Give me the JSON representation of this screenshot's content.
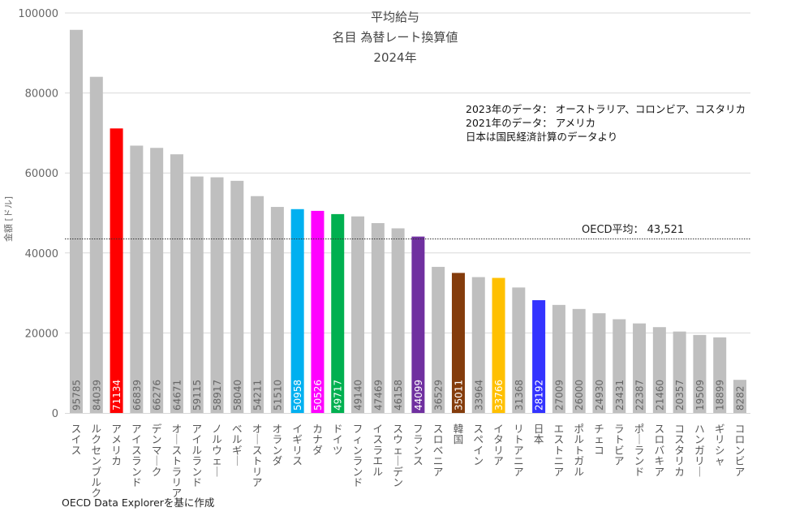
{
  "chart_data": {
    "type": "bar",
    "title": [
      "平均給与",
      "名目 為替レート換算値",
      "2024年"
    ],
    "xlabel": "",
    "ylabel": "金額 [ドル]",
    "ylim": [
      0,
      100000
    ],
    "yticks": [
      0,
      20000,
      40000,
      60000,
      80000,
      100000
    ],
    "ytick_labels": [
      "0",
      "20000",
      "40000",
      "60000",
      "80000",
      "100000"
    ],
    "grid": true,
    "categories": [
      "スイス",
      "ルクセンブルク",
      "アメリカ",
      "アイスランド",
      "デンマーク",
      "オーストラリア",
      "アイルランド",
      "ノルウェー",
      "ベルギー",
      "オーストリア",
      "オランダ",
      "イギリス",
      "カナダ",
      "ドイツ",
      "フィンランド",
      "イスラエル",
      "スウェーデン",
      "フランス",
      "スロベニア",
      "韓国",
      "スペイン",
      "イタリア",
      "リトアニア",
      "日本",
      "エストニア",
      "ポルトガル",
      "チェコ",
      "ラトビア",
      "ポーランド",
      "スロバキア",
      "コスタリカ",
      "ハンガリー",
      "ギリシャ",
      "コロンビア"
    ],
    "values": [
      95785,
      84039,
      71134,
      66839,
      66276,
      64671,
      59115,
      58917,
      58040,
      54211,
      51510,
      50958,
      50526,
      49717,
      49140,
      47469,
      46158,
      44099,
      36529,
      35011,
      33964,
      33766,
      31368,
      28192,
      27009,
      26000,
      24930,
      23431,
      22387,
      21460,
      20357,
      19509,
      18899,
      8282
    ],
    "value_labels": [
      "95785",
      "84039",
      "71134",
      "66839",
      "66276",
      "64671",
      "59115",
      "58917",
      "58040",
      "54211",
      "51510",
      "50958",
      "50526",
      "49717",
      "49140",
      "47469",
      "46158",
      "44099",
      "36529",
      "35011",
      "33964",
      "33766",
      "31368",
      "28192",
      "27009",
      "26000",
      "24930",
      "23431",
      "22387",
      "21460",
      "20357",
      "19509",
      "18899",
      "8282"
    ],
    "default_color": "#BFBFBF",
    "highlight_colors": {
      "アメリカ": "#FF0000",
      "イギリス": "#00B0F0",
      "カナダ": "#FF00FF",
      "ドイツ": "#00B050",
      "フランス": "#7030A0",
      "韓国": "#843C0C",
      "イタリア": "#FFC000",
      "日本": "#3333FF"
    },
    "reference_line": {
      "label": "OECD平均： 43,521",
      "value": 43521
    },
    "annotations": [
      "2023年のデータ： オーストラリア、コロンビア、コスタリカ",
      "2021年のデータ： アメリカ",
      "日本は国民経済計算のデータより"
    ],
    "source": "OECD Data Explorerを基に作成"
  }
}
